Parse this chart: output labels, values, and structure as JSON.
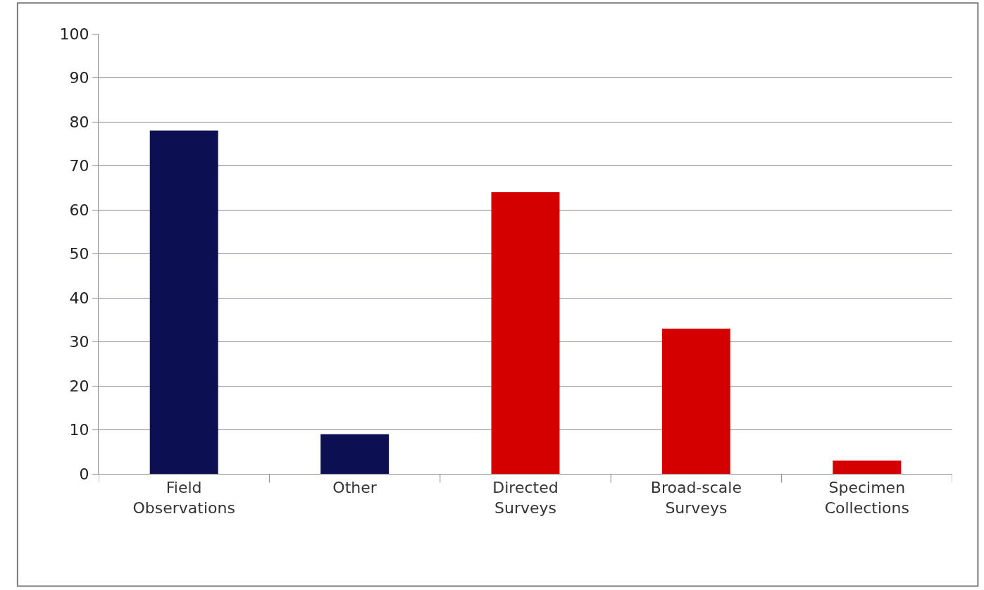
{
  "chart_data": {
    "type": "bar",
    "categories": [
      "Field Observations",
      "Other",
      "Directed Surveys",
      "Broad-scale Surveys",
      "Specimen Collections"
    ],
    "values": [
      78,
      9,
      64,
      33,
      3
    ],
    "colors": [
      "#0c0f52",
      "#0c0f52",
      "#d40000",
      "#d40000",
      "#d40000"
    ],
    "ylim": [
      0,
      100
    ],
    "yticks": [
      0,
      10,
      20,
      30,
      40,
      50,
      60,
      70,
      80,
      90,
      100
    ],
    "grid": "y"
  }
}
